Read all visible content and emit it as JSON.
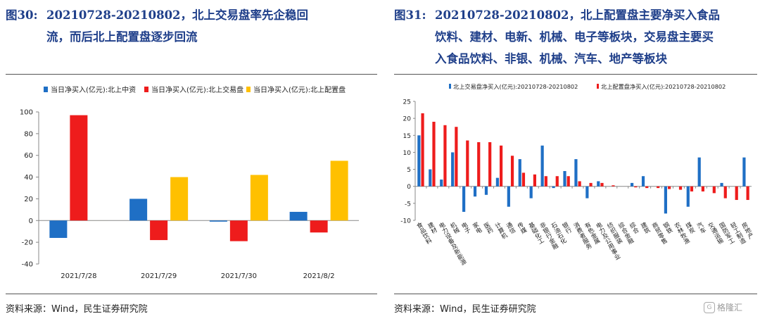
{
  "figures": [
    {
      "label": "图30:",
      "title_line1": "20210728-20210802，北上交易盘率先企稳回",
      "title_line2": "流，而后北上配置盘逐步回流",
      "source": "资料来源：Wind，民生证券研究院"
    },
    {
      "label": "图31:",
      "title_line1": "20210728-20210802，北上配置盘主要净买入食品",
      "title_line2": "饮料、建材、电新、机械、电子等板块，交易盘主要买",
      "title_line3": "入食品饮料、非银、机械、汽车、地产等板块",
      "source": "资料来源：Wind，民生证券研究院"
    }
  ],
  "watermark": "格隆汇",
  "chart_data": [
    {
      "type": "bar",
      "categories": [
        "2021/7/28",
        "2021/7/29",
        "2021/7/30",
        "2021/8/2"
      ],
      "series": [
        {
          "name": "当日净买入(亿元):北上中资",
          "color": "#1f6fc5",
          "values": [
            -16,
            20,
            -1,
            8
          ]
        },
        {
          "name": "当日净买入(亿元):北上交易盘",
          "color": "#ee1c1c",
          "values": [
            97,
            -18,
            -19,
            -11
          ]
        },
        {
          "name": "当日净买入(亿元):北上配置盘",
          "color": "#ffc000",
          "values": [
            0,
            40,
            42,
            55
          ]
        }
      ],
      "ylim": [
        -40,
        100
      ],
      "yticks": [
        -40,
        -20,
        0,
        20,
        40,
        60,
        80,
        100
      ],
      "legend": "top"
    },
    {
      "type": "bar",
      "categories": [
        "食品饮料",
        "建材",
        "电力设备及新能源",
        "机械",
        "电子",
        "家电",
        "医药",
        "计算机",
        "通信",
        "传媒",
        "基础化工",
        "非银行金融",
        "石油石化",
        "银行",
        "消费者服务",
        "有色金属",
        "电力及公用事业",
        "纺织服装",
        "综合金融",
        "综合",
        "建筑",
        "商贸零售",
        "钢铁",
        "农林牧渔",
        "煤炭",
        "汽车",
        "交通运输",
        "国防军工",
        "轻工制造",
        "房地产"
      ],
      "series": [
        {
          "name": "北上交易盘净买入(亿元):20210728-20210802",
          "color": "#1f6fc5",
          "values": [
            15,
            5,
            2,
            10,
            -7.5,
            -3,
            -2.5,
            2.5,
            -6,
            8,
            -3.5,
            12,
            -0.5,
            4.5,
            8,
            -3.5,
            1.5,
            0,
            0,
            1,
            3,
            0,
            -8,
            0,
            -6,
            8.5,
            0,
            1,
            0,
            8.5
          ]
        },
        {
          "name": "北上配置盘净买入(亿元):20210728-20210802",
          "color": "#ee1c1c",
          "values": [
            21.5,
            19,
            18,
            17.5,
            13.5,
            13,
            13,
            12,
            9,
            4,
            3.5,
            3,
            3,
            3,
            1.5,
            1,
            1,
            0.3,
            0,
            -0.3,
            -0.5,
            -0.5,
            -0.8,
            -1,
            -1.5,
            -1.5,
            -2,
            -3.5,
            -4,
            -4
          ]
        }
      ],
      "ylim": [
        -10,
        25
      ],
      "yticks": [
        -10,
        -5,
        0,
        5,
        10,
        15,
        20,
        25
      ],
      "legend": "top"
    }
  ]
}
